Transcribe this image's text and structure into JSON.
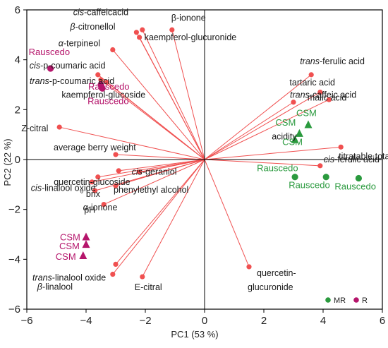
{
  "chart_data": {
    "type": "scatter",
    "subtype": "pca-biplot",
    "xlabel": "PC1 (53 %)",
    "ylabel": "PC2 (22 %)",
    "xlim": [
      -6,
      6
    ],
    "ylim": [
      -6,
      6
    ],
    "xticks": [
      "−6",
      "−4",
      "−2",
      "0",
      "2",
      "4",
      "6"
    ],
    "yticks": [
      "−6",
      "−4",
      "−2",
      "0",
      "2",
      "4",
      "6"
    ],
    "grid": false,
    "legend_position": "bottom-right",
    "colors": {
      "loading": "#f05050",
      "line": "#f05050",
      "R": "#b5156b",
      "MR": "#2a9a3e",
      "axis": "#000000"
    },
    "legend": [
      {
        "key": "MR",
        "label": "MR",
        "color": "#2a9a3e"
      },
      {
        "key": "R",
        "label": "R",
        "color": "#b5156b"
      }
    ],
    "loadings": [
      {
        "x": -2.1,
        "y": 5.2,
        "parts": [
          {
            "t": "cis",
            "i": true
          },
          {
            "t": "-caffeicacid",
            "i": false
          }
        ]
      },
      {
        "x": -1.1,
        "y": 5.2,
        "parts": [
          {
            "t": "β-ionone",
            "i": false
          }
        ]
      },
      {
        "x": -2.3,
        "y": 5.1,
        "parts": [
          {
            "t": "β",
            "i": true
          },
          {
            "t": "-citronellol",
            "i": false
          }
        ]
      },
      {
        "x": -2.2,
        "y": 4.9,
        "parts": [
          {
            "t": "kaempferol-glucuronide",
            "i": false
          }
        ]
      },
      {
        "x": -3.1,
        "y": 4.4,
        "parts": [
          {
            "t": "α",
            "i": true
          },
          {
            "t": "-terpineol",
            "i": false
          }
        ]
      },
      {
        "x": -3.6,
        "y": 3.4,
        "parts": [
          {
            "t": "cis",
            "i": true
          },
          {
            "t": "-p-coumaric acid",
            "i": false
          }
        ]
      },
      {
        "x": -3.5,
        "y": 3.2,
        "parts": [
          {
            "t": "trans",
            "i": true
          },
          {
            "t": "-p-coumaric acid",
            "i": false
          }
        ]
      },
      {
        "x": -3.3,
        "y": 3.1,
        "parts": [
          {
            "t": "kaempferol-glucoside",
            "i": false
          }
        ]
      },
      {
        "x": -4.9,
        "y": 1.3,
        "parts": [
          {
            "t": "Z-citral",
            "i": false
          }
        ]
      },
      {
        "x": -3.0,
        "y": 0.2,
        "parts": [
          {
            "t": "average berry weight",
            "i": false
          }
        ]
      },
      {
        "x": -2.9,
        "y": -0.45,
        "parts": [
          {
            "t": "quercetin-glucoside",
            "i": false
          }
        ]
      },
      {
        "x": -2.2,
        "y": -0.5,
        "parts": [
          {
            "t": "cis",
            "i": true
          },
          {
            "t": "-geraniol",
            "i": false
          }
        ]
      },
      {
        "x": -3.6,
        "y": -0.7,
        "parts": [
          {
            "t": "cis",
            "i": true
          },
          {
            "t": "-linalool oxide",
            "i": false
          }
        ]
      },
      {
        "x": -3.0,
        "y": -1.05,
        "parts": [
          {
            "t": "phenylethyl alcohol",
            "i": false
          }
        ]
      },
      {
        "x": -3.8,
        "y": -0.9,
        "parts": [
          {
            "t": "°  brix",
            "i": false
          }
        ]
      },
      {
        "x": -3.7,
        "y": -1.25,
        "parts": [
          {
            "t": "α",
            "i": true
          },
          {
            "t": "-ionone",
            "i": false
          }
        ]
      },
      {
        "x": -3.4,
        "y": -1.8,
        "parts": [
          {
            "t": "pH",
            "i": false
          }
        ]
      },
      {
        "x": -3.0,
        "y": -4.2,
        "parts": [
          {
            "t": "trans",
            "i": true
          },
          {
            "t": "-linalool oxide",
            "i": false
          }
        ]
      },
      {
        "x": -3.1,
        "y": -4.6,
        "parts": [
          {
            "t": "β",
            "i": true
          },
          {
            "t": "-linalool",
            "i": false
          }
        ]
      },
      {
        "x": -2.1,
        "y": -4.7,
        "parts": [
          {
            "t": "E-citral",
            "i": false
          }
        ]
      },
      {
        "x": 1.5,
        "y": -4.3,
        "parts": [
          {
            "t": "quercetin-",
            "i": false
          }
        ]
      },
      {
        "x": 3.6,
        "y": 3.4,
        "parts": [
          {
            "t": "trans",
            "i": true
          },
          {
            "t": "-ferulic acid",
            "i": false
          }
        ]
      },
      {
        "x": 3.0,
        "y": 2.3,
        "parts": [
          {
            "t": "trans",
            "i": true
          },
          {
            "t": "-caffeic acid",
            "i": false
          }
        ]
      },
      {
        "x": 3.9,
        "y": 2.7,
        "parts": [
          {
            "t": "malic acid",
            "i": false
          }
        ]
      },
      {
        "x": 4.2,
        "y": 2.4,
        "parts": [
          {
            "t": "tartaric acid",
            "i": false
          }
        ]
      },
      {
        "x": 4.6,
        "y": 0.5,
        "parts": [
          {
            "t": "titratable total",
            "i": false
          }
        ]
      },
      {
        "x": 3.9,
        "y": -0.25,
        "parts": [
          {
            "t": "cis",
            "i": true
          },
          {
            "t": "-ferulic acid",
            "i": false
          }
        ]
      }
    ],
    "extra_labels": [
      {
        "text": "acidity",
        "anchor": 25
      },
      {
        "text": "glucuronide",
        "anchor": 20
      }
    ],
    "scores": [
      {
        "label": "Rauscedo",
        "group": "R",
        "shape": "circle",
        "x": -5.2,
        "y": 3.65
      },
      {
        "label": "Rauscedo",
        "group": "R",
        "shape": "circle",
        "x": -3.5,
        "y": 3.0
      },
      {
        "label": "Rauscedo",
        "group": "R",
        "shape": "circle",
        "x": -3.45,
        "y": 2.85
      },
      {
        "label": "CSM",
        "group": "R",
        "shape": "triangle",
        "x": -4.0,
        "y": -3.1
      },
      {
        "label": "CSM",
        "group": "R",
        "shape": "triangle",
        "x": -4.0,
        "y": -3.4
      },
      {
        "label": "CSM",
        "group": "R",
        "shape": "triangle",
        "x": -4.1,
        "y": -3.85
      },
      {
        "label": "CSM",
        "group": "MR",
        "shape": "triangle",
        "x": 3.5,
        "y": 1.4
      },
      {
        "label": "CSM",
        "group": "MR",
        "shape": "triangle",
        "x": 3.2,
        "y": 1.05
      },
      {
        "label": "CSM",
        "group": "MR",
        "shape": "triangle",
        "x": 3.05,
        "y": 0.8
      },
      {
        "label": "Rauscedo",
        "group": "MR",
        "shape": "circle",
        "x": 3.05,
        "y": -0.7
      },
      {
        "label": "Rauscedo",
        "group": "MR",
        "shape": "circle",
        "x": 4.1,
        "y": -0.7
      },
      {
        "label": "Rauscedo",
        "group": "MR",
        "shape": "circle",
        "x": 5.2,
        "y": -0.75
      }
    ],
    "group_labels": [
      {
        "text": "Rauscedo",
        "group": "R",
        "anchor": 0
      },
      {
        "text": "Rauscedo",
        "group": "R",
        "anchor": 1
      },
      {
        "text": "Rauscedo",
        "group": "R",
        "anchor": 2
      },
      {
        "text": "CSM",
        "group": "R",
        "anchor": 3
      },
      {
        "text": "CSM",
        "group": "R",
        "anchor": 4
      },
      {
        "text": "CSM",
        "group": "R",
        "anchor": 5
      },
      {
        "text": "CSM",
        "group": "MR",
        "anchor": 6
      },
      {
        "text": "CSM",
        "group": "MR",
        "anchor": 7
      },
      {
        "text": "CSM",
        "group": "MR",
        "anchor": 8
      },
      {
        "text": "Rauscedo",
        "group": "MR",
        "anchor": 9
      },
      {
        "text": "Rauscedo",
        "group": "MR",
        "anchor": 10
      },
      {
        "text": "Rauscedo",
        "group": "MR",
        "anchor": 11
      }
    ]
  }
}
